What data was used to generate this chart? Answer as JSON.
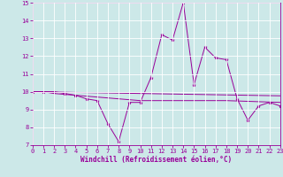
{
  "x": [
    0,
    1,
    2,
    3,
    4,
    5,
    6,
    7,
    8,
    9,
    10,
    11,
    12,
    13,
    14,
    15,
    16,
    17,
    18,
    19,
    20,
    21,
    22,
    23
  ],
  "line1": [
    10.0,
    10.0,
    10.0,
    9.9,
    9.8,
    9.6,
    9.5,
    8.2,
    7.2,
    9.4,
    9.4,
    10.8,
    13.2,
    12.9,
    15.0,
    10.4,
    12.5,
    11.9,
    11.8,
    9.6,
    8.4,
    9.2,
    9.4,
    9.2
  ],
  "line2": [
    10.0,
    10.0,
    9.9,
    9.85,
    9.8,
    9.75,
    9.7,
    9.65,
    9.6,
    9.55,
    9.5,
    9.5,
    9.5,
    9.5,
    9.5,
    9.5,
    9.5,
    9.5,
    9.5,
    9.48,
    9.46,
    9.44,
    9.42,
    9.4
  ],
  "line3": [
    10.0,
    9.99,
    9.98,
    9.97,
    9.96,
    9.95,
    9.94,
    9.93,
    9.92,
    9.91,
    9.9,
    9.89,
    9.88,
    9.87,
    9.86,
    9.85,
    9.84,
    9.83,
    9.82,
    9.81,
    9.8,
    9.79,
    9.78,
    9.77
  ],
  "bg_color": "#cce8e8",
  "grid_color": "#ffffff",
  "line_color": "#990099",
  "xlabel": "Windchill (Refroidissement éolien,°C)",
  "ylim": [
    7,
    15
  ],
  "xlim": [
    0,
    23
  ],
  "yticks": [
    7,
    8,
    9,
    10,
    11,
    12,
    13,
    14,
    15
  ],
  "xticks": [
    0,
    1,
    2,
    3,
    4,
    5,
    6,
    7,
    8,
    9,
    10,
    11,
    12,
    13,
    14,
    15,
    16,
    17,
    18,
    19,
    20,
    21,
    22,
    23
  ],
  "tick_fontsize": 5.0,
  "xlabel_fontsize": 5.5
}
